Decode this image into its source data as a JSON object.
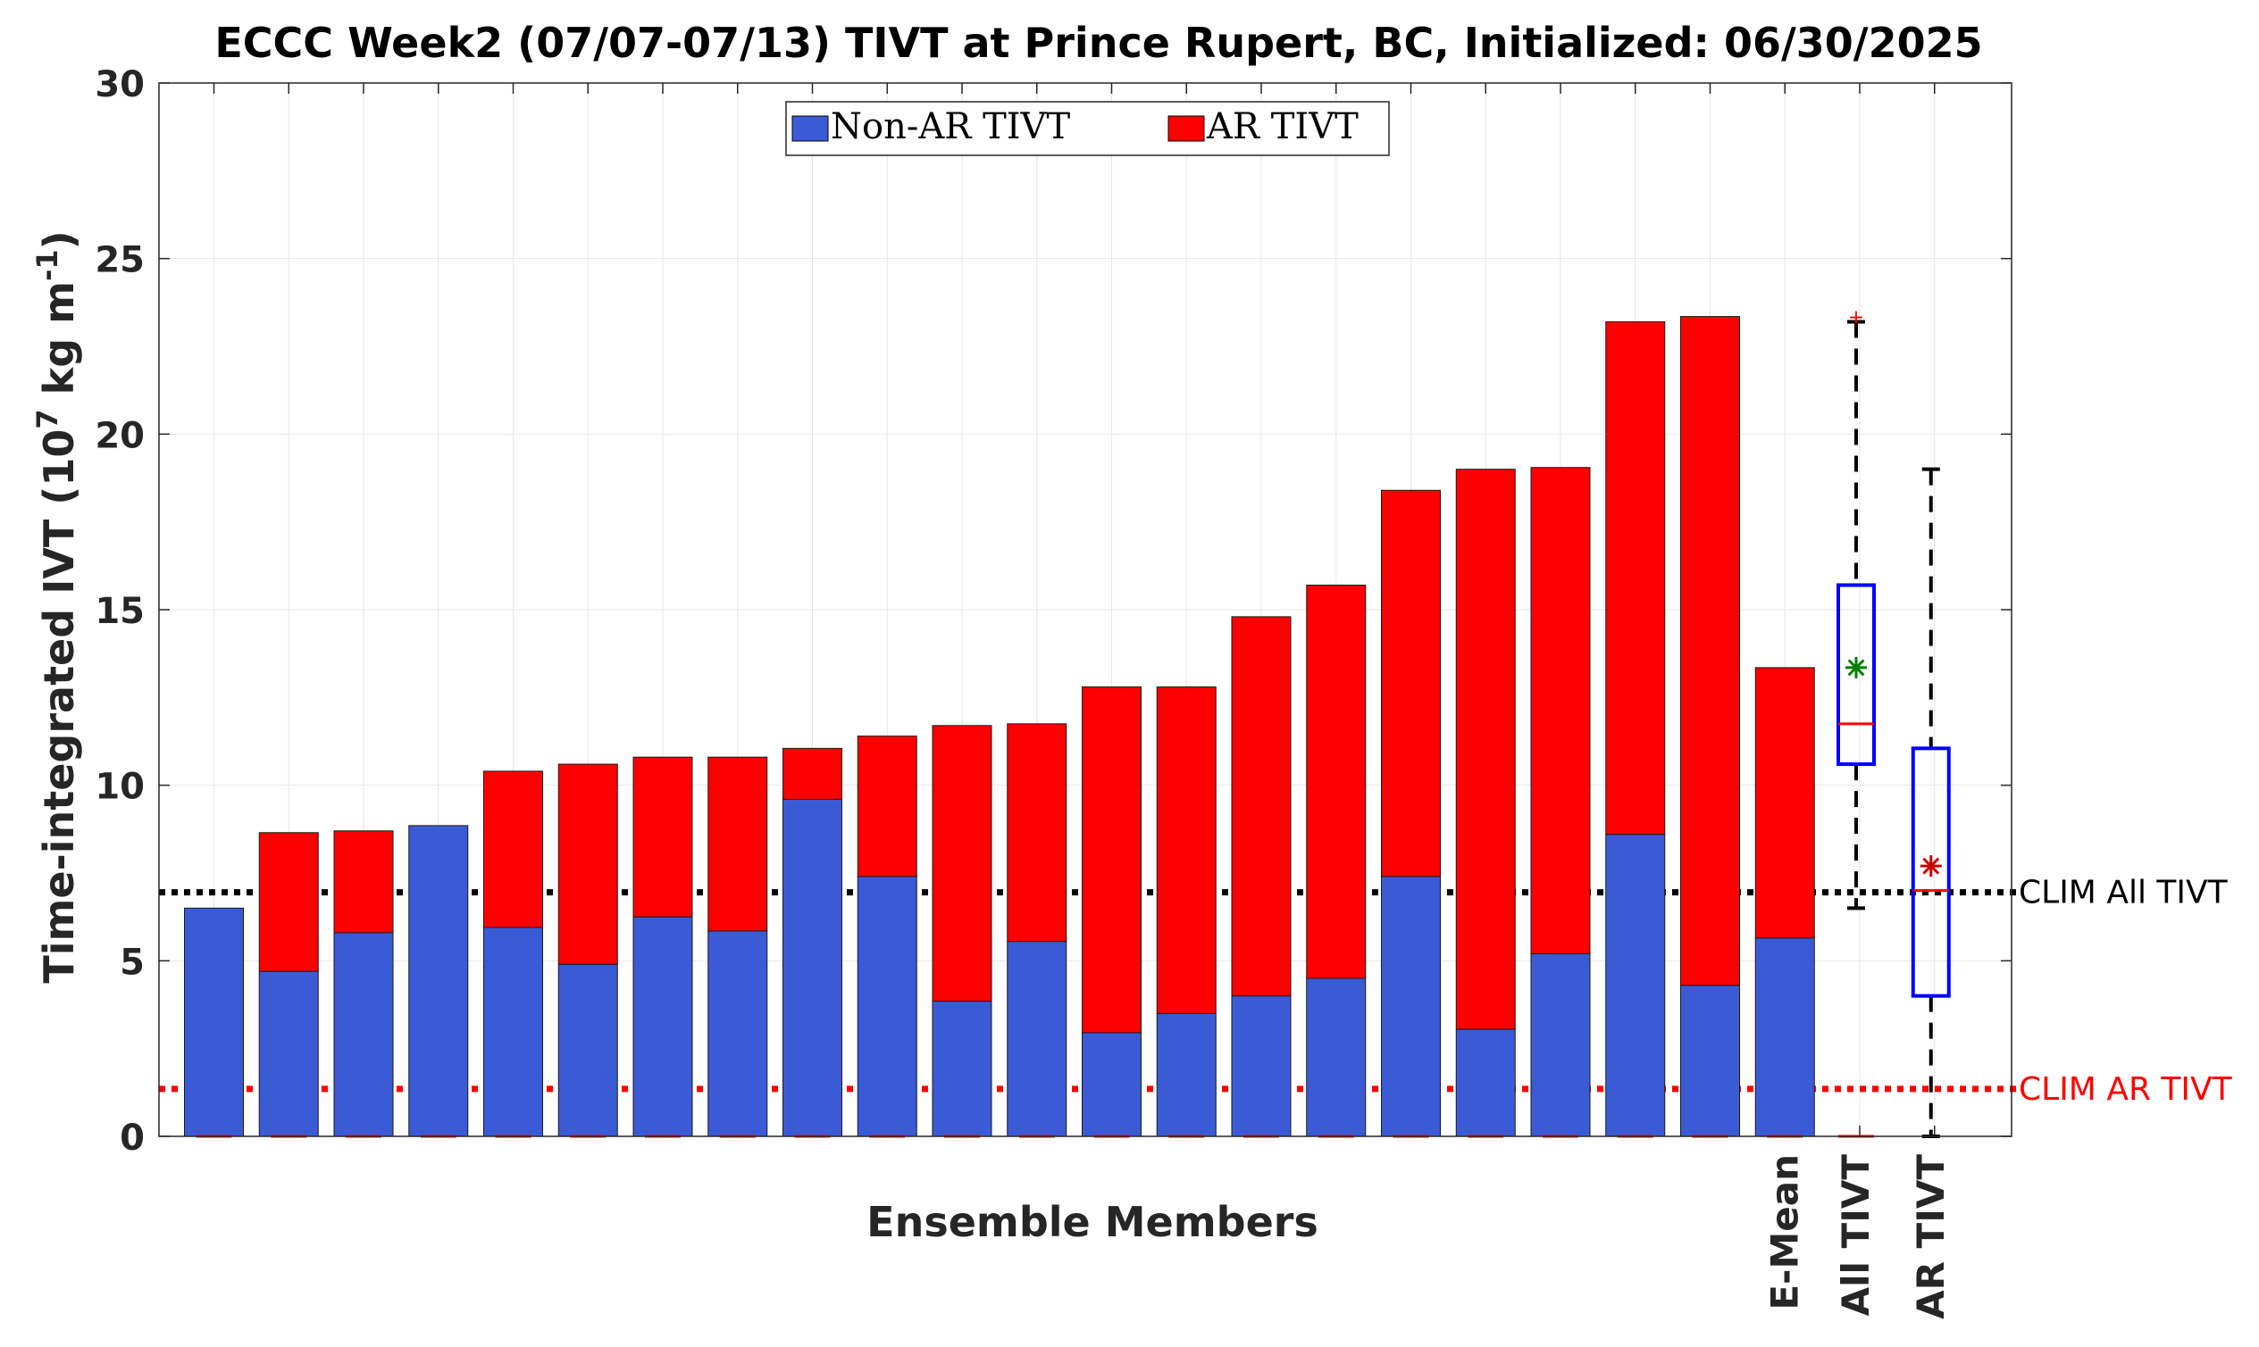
{
  "chart_data": {
    "type": "bar",
    "title": "ECCC Week2 (07/07-07/13) TIVT at Prince Rupert, BC, Initialized: 06/30/2025",
    "xlabel": "Ensemble Members",
    "ylabel": "Time-integrated IVT (10",
    "ylabel_exp": "7",
    "ylabel_unit": " kg m",
    "ylabel_unit_exp": "-1",
    "ylabel_close": ")",
    "ylim": [
      0,
      30
    ],
    "yticks": [
      "0",
      "5",
      "10",
      "15",
      "20",
      "25",
      "30"
    ],
    "grid": true,
    "legend_position": "top-center",
    "series": [
      {
        "name": "Non-AR TIVT",
        "color": "#3b5bd6",
        "values": [
          6.5,
          4.7,
          5.8,
          8.85,
          5.95,
          4.9,
          6.25,
          5.85,
          9.6,
          7.4,
          3.85,
          5.55,
          2.95,
          3.5,
          4.0,
          4.5,
          7.4,
          3.05,
          5.2,
          8.6,
          4.3,
          5.65
        ]
      },
      {
        "name": "AR TIVT",
        "color": "#ff0000",
        "values": [
          0.0,
          3.95,
          2.9,
          0.0,
          4.45,
          5.7,
          4.55,
          4.95,
          1.45,
          4.0,
          7.85,
          6.2,
          9.85,
          9.3,
          10.8,
          11.2,
          11.0,
          15.95,
          13.85,
          14.6,
          19.05,
          7.7
        ]
      }
    ],
    "tick_labels_bottom": [
      "E-Mean",
      "All TIVT",
      "AR TIVT"
    ],
    "boxplots": [
      {
        "label": "All TIVT",
        "min": 6.5,
        "q1": 10.6,
        "median": 11.75,
        "q3": 15.7,
        "max": 23.2,
        "mean": 13.35,
        "outlier": 23.35,
        "box_color": "#0000ff",
        "median_color": "#ff0000",
        "mean_color": "#008000"
      },
      {
        "label": "AR TIVT",
        "min": 0.0,
        "q1": 4.0,
        "median": 7.0,
        "q3": 11.05,
        "max": 19.0,
        "mean": 7.7,
        "box_color": "#0000ff",
        "median_color": "#ff0000",
        "mean_color": "#cc0000"
      }
    ],
    "reference_lines": [
      {
        "label": "CLIM All TIVT",
        "value": 6.95,
        "color": "#000000"
      },
      {
        "label": "CLIM AR TIVT",
        "value": 1.35,
        "color": "#ff0000"
      }
    ]
  }
}
